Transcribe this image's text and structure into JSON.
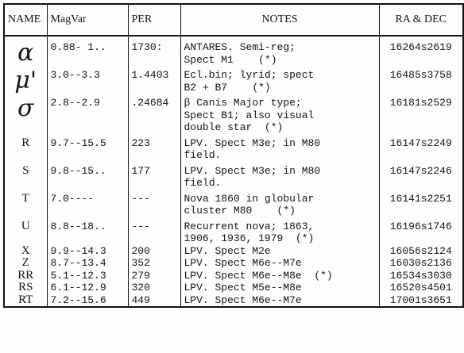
{
  "headers": {
    "name": "NAME",
    "magvar": "MagVar",
    "per": "PER",
    "notes": "NOTES",
    "radec": "RA & DEC"
  },
  "rows": [
    {
      "name": "α",
      "magvar": "0.88- 1..",
      "per": "1730:",
      "notes": [
        "ANTARES. Semi-reg;",
        "Spect M1    (*)"
      ],
      "radec": "16264s2619"
    },
    {
      "name": "μ'",
      "magvar": "3.0--3.3",
      "per": "1.4403",
      "notes": [
        "Ecl.bin; lyrid; spect",
        "B2 + B7    (*)"
      ],
      "radec": "16485s3758"
    },
    {
      "name": "σ",
      "magvar": "2.8--2.9",
      "per": ".24684",
      "notes": [
        "β Canis Major type;",
        "Spect B1; also visual",
        "double star  (*)"
      ],
      "radec": "16181s2529"
    },
    {
      "name": "R",
      "magvar": "9.7--15.5",
      "per": "223",
      "notes": [
        "LPV. Spect M3e; in M80",
        "field."
      ],
      "radec": "16147s2249"
    },
    {
      "name": "S",
      "magvar": "9.8--15..",
      "per": "177",
      "notes": [
        "LPV. Spect M3e; in M80",
        "field."
      ],
      "radec": "16147s2246"
    },
    {
      "name": "T",
      "magvar": "7.0----",
      "per": "---",
      "notes": [
        "Nova 1860 in globular",
        "cluster M80    (*)"
      ],
      "radec": "16141s2251"
    },
    {
      "name": "U",
      "magvar": "8.8--18..",
      "per": "---",
      "notes": [
        "Recurrent nova; 1863,",
        "1906, 1936, 1979  (*)"
      ],
      "radec": "16196s1746"
    },
    {
      "name": "X",
      "magvar": "9.9--14.3",
      "per": "200",
      "notes": [
        "LPV. Spect M2e"
      ],
      "radec": "16056s2124"
    },
    {
      "name": "Z",
      "magvar": "8.7--13.4",
      "per": "352",
      "notes": [
        "LPV. Spect M6e--M7e"
      ],
      "radec": "16030s2136"
    },
    {
      "name": "RR",
      "magvar": "5.1--12.3",
      "per": "279",
      "notes": [
        "LPV. Spect M6e--M8e  (*)"
      ],
      "radec": "16534s3030"
    },
    {
      "name": "RS",
      "magvar": "6.1--12.9",
      "per": "320",
      "notes": [
        "LPV. Spect M5e--M8e"
      ],
      "radec": "16520s4501"
    },
    {
      "name": "RT",
      "magvar": "7.2--15.6",
      "per": "449",
      "notes": [
        "LPV. Spect M6e--M7e"
      ],
      "radec": "17001s3651"
    }
  ]
}
